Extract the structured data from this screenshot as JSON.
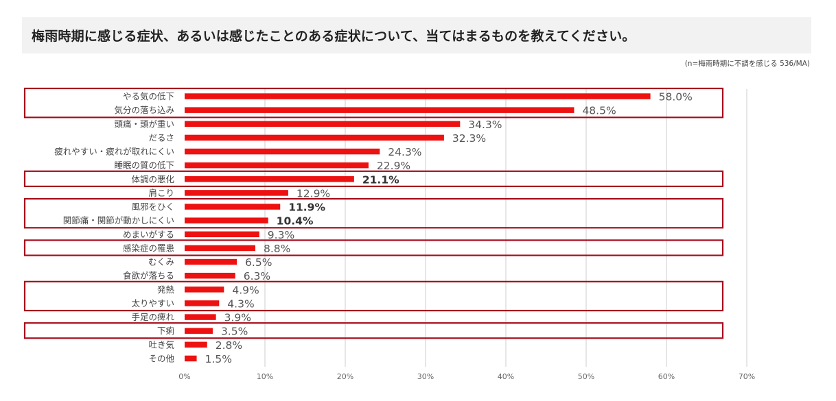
{
  "header": {
    "title": "梅雨時期に感じる症状、あるいは感じたことのある症状について、当てはまるものを教えてください。",
    "note": "(n=梅雨時期に不調を感じる 536/MA)"
  },
  "colors": {
    "bar": "#ee1111",
    "highlight_border": "#a50d1c",
    "gridline": "#d9d9d9",
    "title_band": "#f2f2f2"
  },
  "chart_data": {
    "type": "bar",
    "orientation": "horizontal",
    "title": "梅雨時期に感じる症状、あるいは感じたことのある症状について、当てはまるものを教えてください。",
    "xlim": [
      0,
      70
    ],
    "ticks": [
      0,
      10,
      20,
      30,
      40,
      50,
      60,
      70
    ],
    "tick_labels": [
      "0%",
      "10%",
      "20%",
      "30%",
      "40%",
      "50%",
      "60%",
      "70%"
    ],
    "grid": true,
    "categories": [
      "やる気の低下",
      "気分の落ち込み",
      "頭痛・頭が重い",
      "だるさ",
      "疲れやすい・疲れが取れにくい",
      "睡眠の質の低下",
      "体調の悪化",
      "肩こり",
      "風邪をひく",
      "関節痛・関節が動かしにくい",
      "めまいがする",
      "感染症の罹患",
      "むくみ",
      "食欲が落ちる",
      "発熱",
      "太りやすい",
      "手足の痺れ",
      "下痢",
      "吐き気",
      "その他"
    ],
    "values": [
      58.0,
      48.5,
      34.3,
      32.3,
      24.3,
      22.9,
      21.1,
      12.9,
      11.9,
      10.4,
      9.3,
      8.8,
      6.5,
      6.3,
      4.9,
      4.3,
      3.9,
      3.5,
      2.8,
      1.5
    ],
    "value_labels": [
      "58.0%",
      "48.5%",
      "34.3%",
      "32.3%",
      "24.3%",
      "22.9%",
      "21.1%",
      "12.9%",
      "11.9%",
      "10.4%",
      "9.3%",
      "8.8%",
      "6.5%",
      "6.3%",
      "4.9%",
      "4.3%",
      "3.9%",
      "3.5%",
      "2.8%",
      "1.5%"
    ],
    "bold_labels": [
      6,
      8,
      9
    ],
    "highlight_groups": [
      [
        0,
        1
      ],
      [
        6,
        6
      ],
      [
        8,
        9
      ],
      [
        11,
        11
      ],
      [
        14,
        15
      ],
      [
        17,
        17
      ]
    ]
  }
}
